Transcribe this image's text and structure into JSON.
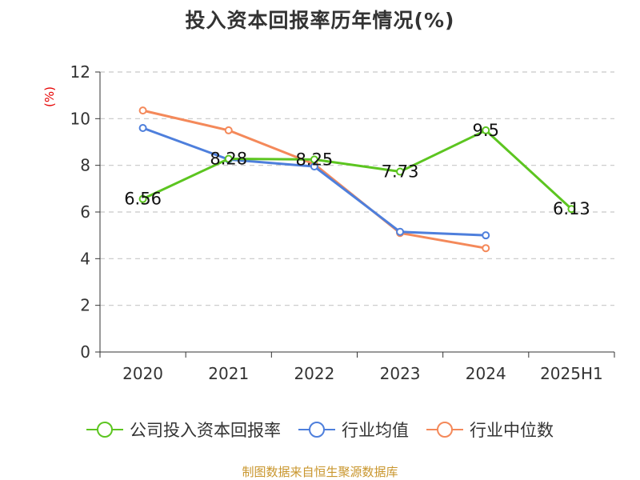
{
  "title": "投入资本回报率历年情况(%)",
  "unit_label": "(%)",
  "source": "制图数据来自恒生聚源数据库",
  "legend": [
    {
      "label": "公司投入资本回报率",
      "color": "#5cc520"
    },
    {
      "label": "行业均值",
      "color": "#4e7fdc"
    },
    {
      "label": "行业中位数",
      "color": "#f4895a"
    }
  ],
  "chart_data": {
    "type": "line",
    "categories": [
      "2020",
      "2021",
      "2022",
      "2023",
      "2024",
      "2025H1"
    ],
    "ylim": [
      0,
      12
    ],
    "yticks": [
      0,
      2,
      4,
      6,
      8,
      10,
      12
    ],
    "grid": true,
    "legend_position": "bottom",
    "series": [
      {
        "name": "公司投入资本回报率",
        "color": "#5cc520",
        "values": [
          6.56,
          8.28,
          8.25,
          7.73,
          9.5,
          6.13
        ],
        "data_labels": [
          "6.56",
          "8.28",
          "8.25",
          "7.73",
          "9.5",
          "6.13"
        ]
      },
      {
        "name": "行业均值",
        "color": "#4e7fdc",
        "values": [
          9.6,
          8.25,
          7.95,
          5.15,
          5.0,
          null
        ]
      },
      {
        "name": "行业中位数",
        "color": "#f4895a",
        "values": [
          10.35,
          9.5,
          8.05,
          5.1,
          4.45,
          null
        ]
      }
    ]
  }
}
